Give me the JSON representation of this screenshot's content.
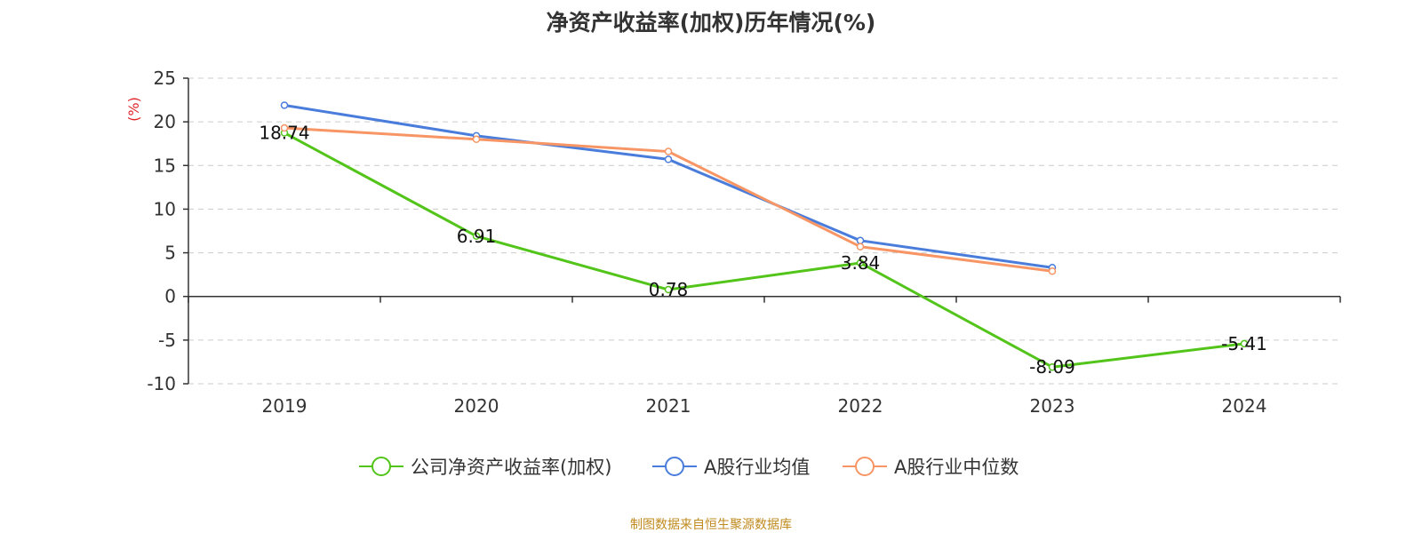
{
  "chart_data": {
    "type": "line",
    "title": "净资产收益率(加权)历年情况(%)",
    "ylabel": "(%)",
    "xlabel": "",
    "categories": [
      "2019",
      "2020",
      "2021",
      "2022",
      "2023",
      "2024"
    ],
    "ylim": [
      -10,
      25
    ],
    "yticks": [
      25,
      20,
      15,
      10,
      5,
      0,
      -5,
      -10
    ],
    "grid": true,
    "legend_position": "bottom",
    "series": [
      {
        "name": "公司净资产收益率(加权)",
        "color": "#52c41a",
        "values": [
          18.74,
          6.91,
          0.78,
          3.84,
          -8.09,
          -5.41
        ],
        "data_labels": [
          "18.74",
          "6.91",
          "0.78",
          "3.84",
          "-8.09",
          "-5.41"
        ]
      },
      {
        "name": "A股行业均值",
        "color": "#4a7ddb",
        "values": [
          21.9,
          18.4,
          15.7,
          6.4,
          3.3,
          null
        ]
      },
      {
        "name": "A股行业中位数",
        "color": "#f79565",
        "values": [
          19.3,
          18.0,
          16.6,
          5.7,
          2.9,
          null
        ]
      }
    ]
  },
  "source": "制图数据来自恒生聚源数据库"
}
